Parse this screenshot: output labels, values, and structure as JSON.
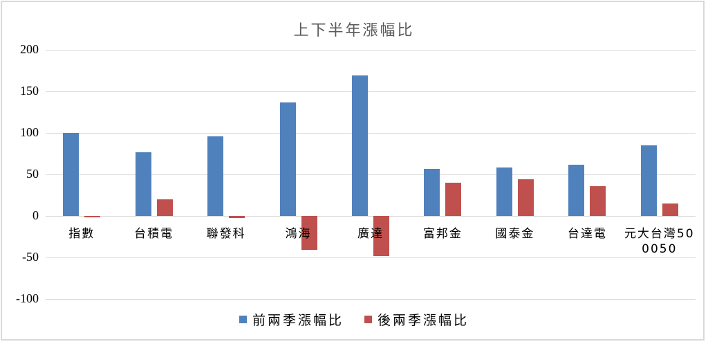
{
  "chart_data": {
    "type": "bar",
    "title": "上下半年漲幅比",
    "xlabel": "",
    "ylabel": "",
    "ylim": [
      -100,
      200
    ],
    "yticks": [
      200,
      150,
      100,
      50,
      0,
      -50,
      -100
    ],
    "grid": true,
    "legend_position": "bottom",
    "categories": [
      "指數",
      "台積電",
      "聯發科",
      "鴻海",
      "廣達",
      "富邦金",
      "國泰金",
      "台達電",
      "元大台灣50 0050"
    ],
    "category_lines": [
      [
        "指數"
      ],
      [
        "台積電"
      ],
      [
        "聯發科"
      ],
      [
        "鴻海"
      ],
      [
        "廣達"
      ],
      [
        "富邦金"
      ],
      [
        "國泰金"
      ],
      [
        "台達電"
      ],
      [
        "元大台灣50",
        "0050"
      ]
    ],
    "series": [
      {
        "name": "前兩季漲幅比",
        "color": "#4f81bd",
        "values": [
          100,
          77,
          96,
          137,
          169,
          57,
          58,
          62,
          85
        ]
      },
      {
        "name": "後兩季漲幅比",
        "color": "#c0504d",
        "values": [
          -1.5,
          20,
          -2.5,
          -41,
          -48,
          40,
          44,
          36,
          15
        ]
      }
    ]
  },
  "legend": {
    "items": [
      {
        "label": "前兩季漲幅比",
        "color": "#4f81bd"
      },
      {
        "label": "後兩季漲幅比",
        "color": "#c0504d"
      }
    ]
  }
}
